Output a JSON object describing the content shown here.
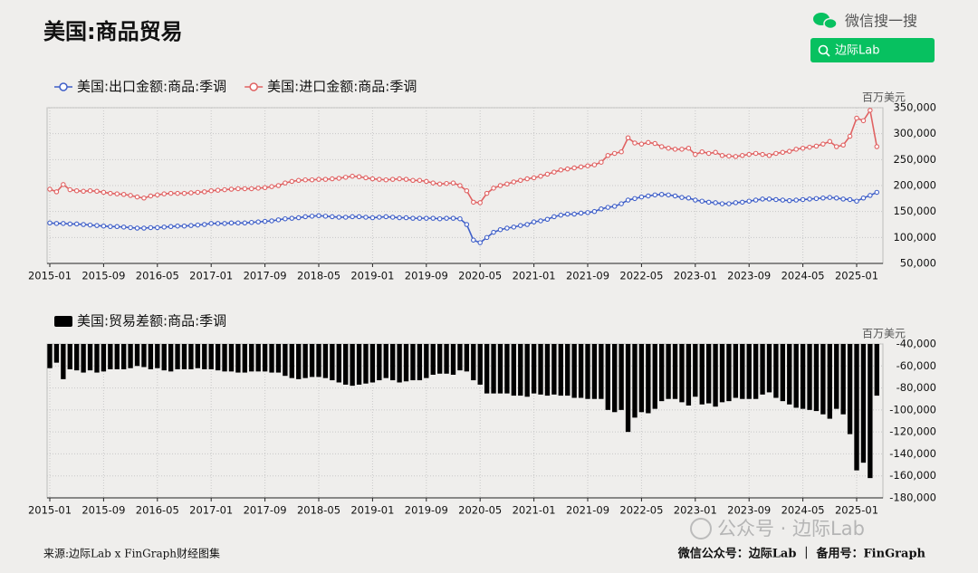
{
  "header": {
    "title": "美国:商品贸易",
    "search_brand": "微信搜一搜",
    "search_button": "边际Lab"
  },
  "chart_data": [
    {
      "type": "line",
      "unit": "百万美元",
      "categories": [
        "2015-01",
        null,
        null,
        null,
        null,
        null,
        null,
        null,
        "2015-09",
        null,
        null,
        null,
        null,
        null,
        null,
        null,
        "2016-05",
        null,
        null,
        null,
        null,
        null,
        null,
        null,
        "2017-01",
        null,
        null,
        null,
        null,
        null,
        null,
        null,
        "2017-09",
        null,
        null,
        null,
        null,
        null,
        null,
        null,
        "2018-05",
        null,
        null,
        null,
        null,
        null,
        null,
        null,
        "2019-01",
        null,
        null,
        null,
        null,
        null,
        null,
        null,
        "2019-09",
        null,
        null,
        null,
        null,
        null,
        null,
        null,
        "2020-05",
        null,
        null,
        null,
        null,
        null,
        null,
        null,
        "2021-01",
        null,
        null,
        null,
        null,
        null,
        null,
        null,
        "2021-09",
        null,
        null,
        null,
        null,
        null,
        null,
        null,
        "2022-05",
        null,
        null,
        null,
        null,
        null,
        null,
        null,
        "2023-01",
        null,
        null,
        null,
        null,
        null,
        null,
        null,
        "2023-09",
        null,
        null,
        null,
        null,
        null,
        null,
        null,
        "2024-05",
        null,
        null,
        null,
        null,
        null,
        null,
        null,
        "2025-01",
        null,
        null,
        null
      ],
      "series": [
        {
          "name": "美国:出口金额:商品:季调",
          "color": "#3f5fc8",
          "values": [
            128000,
            127000,
            127000,
            126000,
            126000,
            125000,
            124000,
            123000,
            122000,
            121000,
            121000,
            120000,
            119000,
            118000,
            118000,
            119000,
            119000,
            120000,
            121000,
            122000,
            122000,
            123000,
            124000,
            125000,
            127000,
            127000,
            127000,
            128000,
            128000,
            128000,
            129000,
            130000,
            131000,
            132000,
            134000,
            136000,
            137000,
            138000,
            140000,
            141000,
            142000,
            141000,
            140000,
            139000,
            139000,
            140000,
            140000,
            139000,
            138000,
            139000,
            140000,
            139000,
            138000,
            138000,
            137000,
            137000,
            137000,
            137000,
            136000,
            137000,
            137000,
            136000,
            125000,
            95000,
            90000,
            100000,
            110000,
            115000,
            118000,
            120000,
            123000,
            125000,
            130000,
            132000,
            135000,
            140000,
            143000,
            145000,
            145000,
            147000,
            148000,
            150000,
            155000,
            158000,
            160000,
            165000,
            172000,
            175000,
            178000,
            180000,
            182000,
            183000,
            182000,
            180000,
            177000,
            176000,
            172000,
            170000,
            168000,
            167000,
            165000,
            165000,
            167000,
            168000,
            170000,
            172000,
            174000,
            174000,
            173000,
            172000,
            171000,
            172000,
            173000,
            174000,
            175000,
            176000,
            177000,
            176000,
            174000,
            173000,
            170000,
            176000,
            181000,
            187000
          ]
        },
        {
          "name": "美国:进口金额:商品:季调",
          "color": "#e06262",
          "values": [
            193000,
            188000,
            202000,
            192000,
            190000,
            189000,
            190000,
            189000,
            187000,
            185000,
            184000,
            183000,
            181000,
            178000,
            176000,
            180000,
            182000,
            184000,
            185000,
            185000,
            185000,
            186000,
            187000,
            188000,
            190000,
            191000,
            192000,
            193000,
            194000,
            194000,
            194000,
            195000,
            196000,
            198000,
            200000,
            205000,
            208000,
            210000,
            211000,
            211000,
            212000,
            212000,
            213000,
            214000,
            216000,
            218000,
            217000,
            215000,
            213000,
            212000,
            211000,
            212000,
            213000,
            212000,
            210000,
            210000,
            208000,
            205000,
            203000,
            204000,
            205000,
            200000,
            190000,
            168000,
            167000,
            185000,
            195000,
            200000,
            203000,
            207000,
            210000,
            213000,
            215000,
            218000,
            222000,
            226000,
            230000,
            232000,
            234000,
            236000,
            238000,
            240000,
            245000,
            258000,
            262000,
            265000,
            292000,
            282000,
            280000,
            283000,
            281000,
            275000,
            272000,
            270000,
            270000,
            272000,
            260000,
            265000,
            262000,
            264000,
            258000,
            257000,
            256000,
            258000,
            260000,
            262000,
            260000,
            258000,
            262000,
            264000,
            266000,
            270000,
            272000,
            274000,
            276000,
            280000,
            285000,
            275000,
            278000,
            295000,
            330000,
            325000,
            345000,
            275000
          ]
        }
      ],
      "ylim": [
        50000,
        350000
      ],
      "yticks": [
        {
          "value": 50000,
          "label": "50,000"
        },
        {
          "value": 100000,
          "label": "100,000"
        },
        {
          "value": 150000,
          "label": "150,000"
        },
        {
          "value": 200000,
          "label": "200,000"
        },
        {
          "value": 250000,
          "label": "250,000"
        },
        {
          "value": 300000,
          "label": "300,000"
        },
        {
          "value": 350000,
          "label": "350,000"
        }
      ],
      "grid": true
    },
    {
      "type": "bar",
      "unit": "百万美元",
      "categories": [
        "2015-01",
        null,
        null,
        null,
        null,
        null,
        null,
        null,
        "2015-09",
        null,
        null,
        null,
        null,
        null,
        null,
        null,
        "2016-05",
        null,
        null,
        null,
        null,
        null,
        null,
        null,
        "2017-01",
        null,
        null,
        null,
        null,
        null,
        null,
        null,
        "2017-09",
        null,
        null,
        null,
        null,
        null,
        null,
        null,
        "2018-05",
        null,
        null,
        null,
        null,
        null,
        null,
        null,
        "2019-01",
        null,
        null,
        null,
        null,
        null,
        null,
        null,
        "2019-09",
        null,
        null,
        null,
        null,
        null,
        null,
        null,
        "2020-05",
        null,
        null,
        null,
        null,
        null,
        null,
        null,
        "2021-01",
        null,
        null,
        null,
        null,
        null,
        null,
        null,
        "2021-09",
        null,
        null,
        null,
        null,
        null,
        null,
        null,
        "2022-05",
        null,
        null,
        null,
        null,
        null,
        null,
        null,
        "2023-01",
        null,
        null,
        null,
        null,
        null,
        null,
        null,
        "2023-09",
        null,
        null,
        null,
        null,
        null,
        null,
        null,
        "2024-05",
        null,
        null,
        null,
        null,
        null,
        null,
        null,
        "2025-01",
        null,
        null,
        null
      ],
      "series": [
        {
          "name": "美国:贸易差额:商品:季调",
          "color": "#000000",
          "values": [
            -62000,
            -57000,
            -72000,
            -63000,
            -64000,
            -66000,
            -64000,
            -66000,
            -65000,
            -63000,
            -63000,
            -63000,
            -62000,
            -60000,
            -61000,
            -63000,
            -62000,
            -64000,
            -65000,
            -63000,
            -63000,
            -63000,
            -62000,
            -63000,
            -63000,
            -64000,
            -65000,
            -65000,
            -66000,
            -66000,
            -65000,
            -65000,
            -65000,
            -66000,
            -66000,
            -69000,
            -71000,
            -72000,
            -71000,
            -70000,
            -70000,
            -71000,
            -73000,
            -75000,
            -77000,
            -78000,
            -77000,
            -76000,
            -75000,
            -73000,
            -71000,
            -73000,
            -75000,
            -74000,
            -73000,
            -73000,
            -71000,
            -68000,
            -67000,
            -67000,
            -68000,
            -64000,
            -65000,
            -73000,
            -77000,
            -85000,
            -85000,
            -85000,
            -85000,
            -87000,
            -87000,
            -88000,
            -85000,
            -86000,
            -87000,
            -86000,
            -87000,
            -87000,
            -89000,
            -89000,
            -90000,
            -90000,
            -90000,
            -100000,
            -102000,
            -100000,
            -120000,
            -107000,
            -102000,
            -103000,
            -99000,
            -92000,
            -90000,
            -90000,
            -93000,
            -96000,
            -88000,
            -95000,
            -94000,
            -97000,
            -93000,
            -92000,
            -89000,
            -90000,
            -90000,
            -90000,
            -86000,
            -84000,
            -89000,
            -92000,
            -95000,
            -98000,
            -99000,
            -100000,
            -101000,
            -104000,
            -108000,
            -99000,
            -104000,
            -122000,
            -155000,
            -148000,
            -162000,
            -87000
          ]
        }
      ],
      "ylim": [
        -180000,
        -40000
      ],
      "yticks": [
        {
          "value": -180000,
          "label": "-180,000"
        },
        {
          "value": -160000,
          "label": "-160,000"
        },
        {
          "value": -140000,
          "label": "-140,000"
        },
        {
          "value": -120000,
          "label": "-120,000"
        },
        {
          "value": -100000,
          "label": "-100,000"
        },
        {
          "value": -80000,
          "label": "-80,000"
        },
        {
          "value": -60000,
          "label": "-60,000"
        },
        {
          "value": -40000,
          "label": "-40,000"
        }
      ],
      "grid": true
    }
  ],
  "footer": {
    "source": "来源:边际Lab x FinGraph财经图集",
    "contact": "微信公众号：边际Lab ｜ 备用号：FinGraph",
    "watermark": "公众号 · 边际Lab"
  }
}
